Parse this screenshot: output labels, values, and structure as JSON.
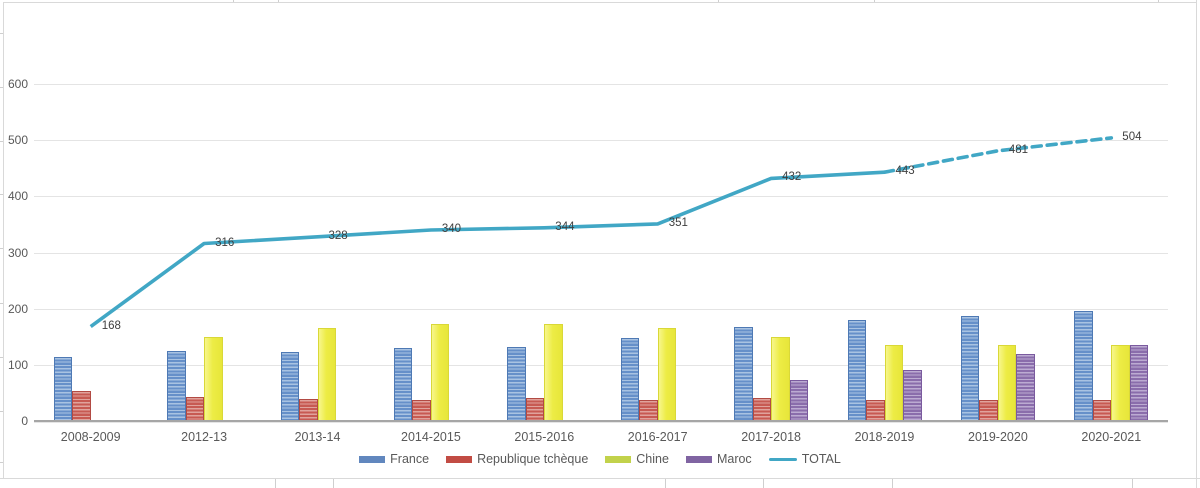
{
  "chart_data": {
    "type": "bar",
    "combo_with_line": true,
    "title": "",
    "categories": [
      "2008-2009",
      "2012-13",
      "2013-14",
      "2014-2015",
      "2015-2016",
      "2016-2017",
      "2017-2018",
      "2018-2019",
      "2019-2020",
      "2020-2021"
    ],
    "series": [
      {
        "name": "France",
        "kind": "bar",
        "values": [
          114,
          124,
          123,
          130,
          131,
          147,
          168,
          180,
          187,
          196
        ],
        "color": "#6690C9",
        "stripe_color": "#A9C3E2",
        "border_color": "#4E79B4",
        "legend_color": "#6187BE"
      },
      {
        "name": "Republique tchèque",
        "kind": "bar",
        "values": [
          54,
          42,
          40,
          38,
          41,
          38,
          41,
          38,
          38,
          38
        ],
        "color": "#C75A52",
        "stripe_color": "#E0A39C",
        "border_color": "#B24A43",
        "legend_color": "#C24C44"
      },
      {
        "name": "Chine",
        "kind": "bar",
        "values": [
          null,
          150,
          165,
          172,
          172,
          166,
          150,
          135,
          136,
          135
        ],
        "color": "#EDEC45",
        "stripe_color": "#F7F68C",
        "border_color": "#D9D838",
        "legend_color": "#C2D24B"
      },
      {
        "name": "Maroc",
        "kind": "bar",
        "values": [
          null,
          null,
          null,
          null,
          null,
          null,
          73,
          90,
          120,
          135
        ],
        "color": "#8A6DAB",
        "stripe_color": "#BCABD2",
        "border_color": "#7A5A9E",
        "legend_color": "#8064A2"
      },
      {
        "name": "TOTAL",
        "kind": "line",
        "values": [
          168,
          316,
          328,
          340,
          344,
          351,
          432,
          443,
          481,
          504
        ],
        "data_labels": [
          "168",
          "316",
          "328",
          "340",
          "344",
          "351",
          "432",
          "443",
          "481",
          "504"
        ],
        "color": "#41A7C5",
        "solid_through_index": 7,
        "dashed_after_index": 7
      }
    ],
    "y_axis": {
      "min": 0,
      "max": 600,
      "step": 100,
      "tick_labels": [
        "0",
        "100",
        "200",
        "300",
        "400",
        "500",
        "600"
      ]
    },
    "x_axis": {
      "labels": [
        "2008-2009",
        "2012-13",
        "2013-14",
        "2014-2015",
        "2015-2016",
        "2016-2017",
        "2017-2018",
        "2018-2019",
        "2019-2020",
        "2020-2021"
      ]
    },
    "grid": true,
    "legend_position": "bottom",
    "legend_entries": [
      "France",
      "Republique tchèque",
      "Chine",
      "Maroc",
      "TOTAL"
    ]
  },
  "colors": {
    "axis_line": "#A6A6A6",
    "gridline": "#E4E4E4",
    "tick_text": "#595959",
    "data_label_text": "#3F3F3F",
    "frame": "#D9D9D9",
    "total_line": "#41A7C5"
  }
}
